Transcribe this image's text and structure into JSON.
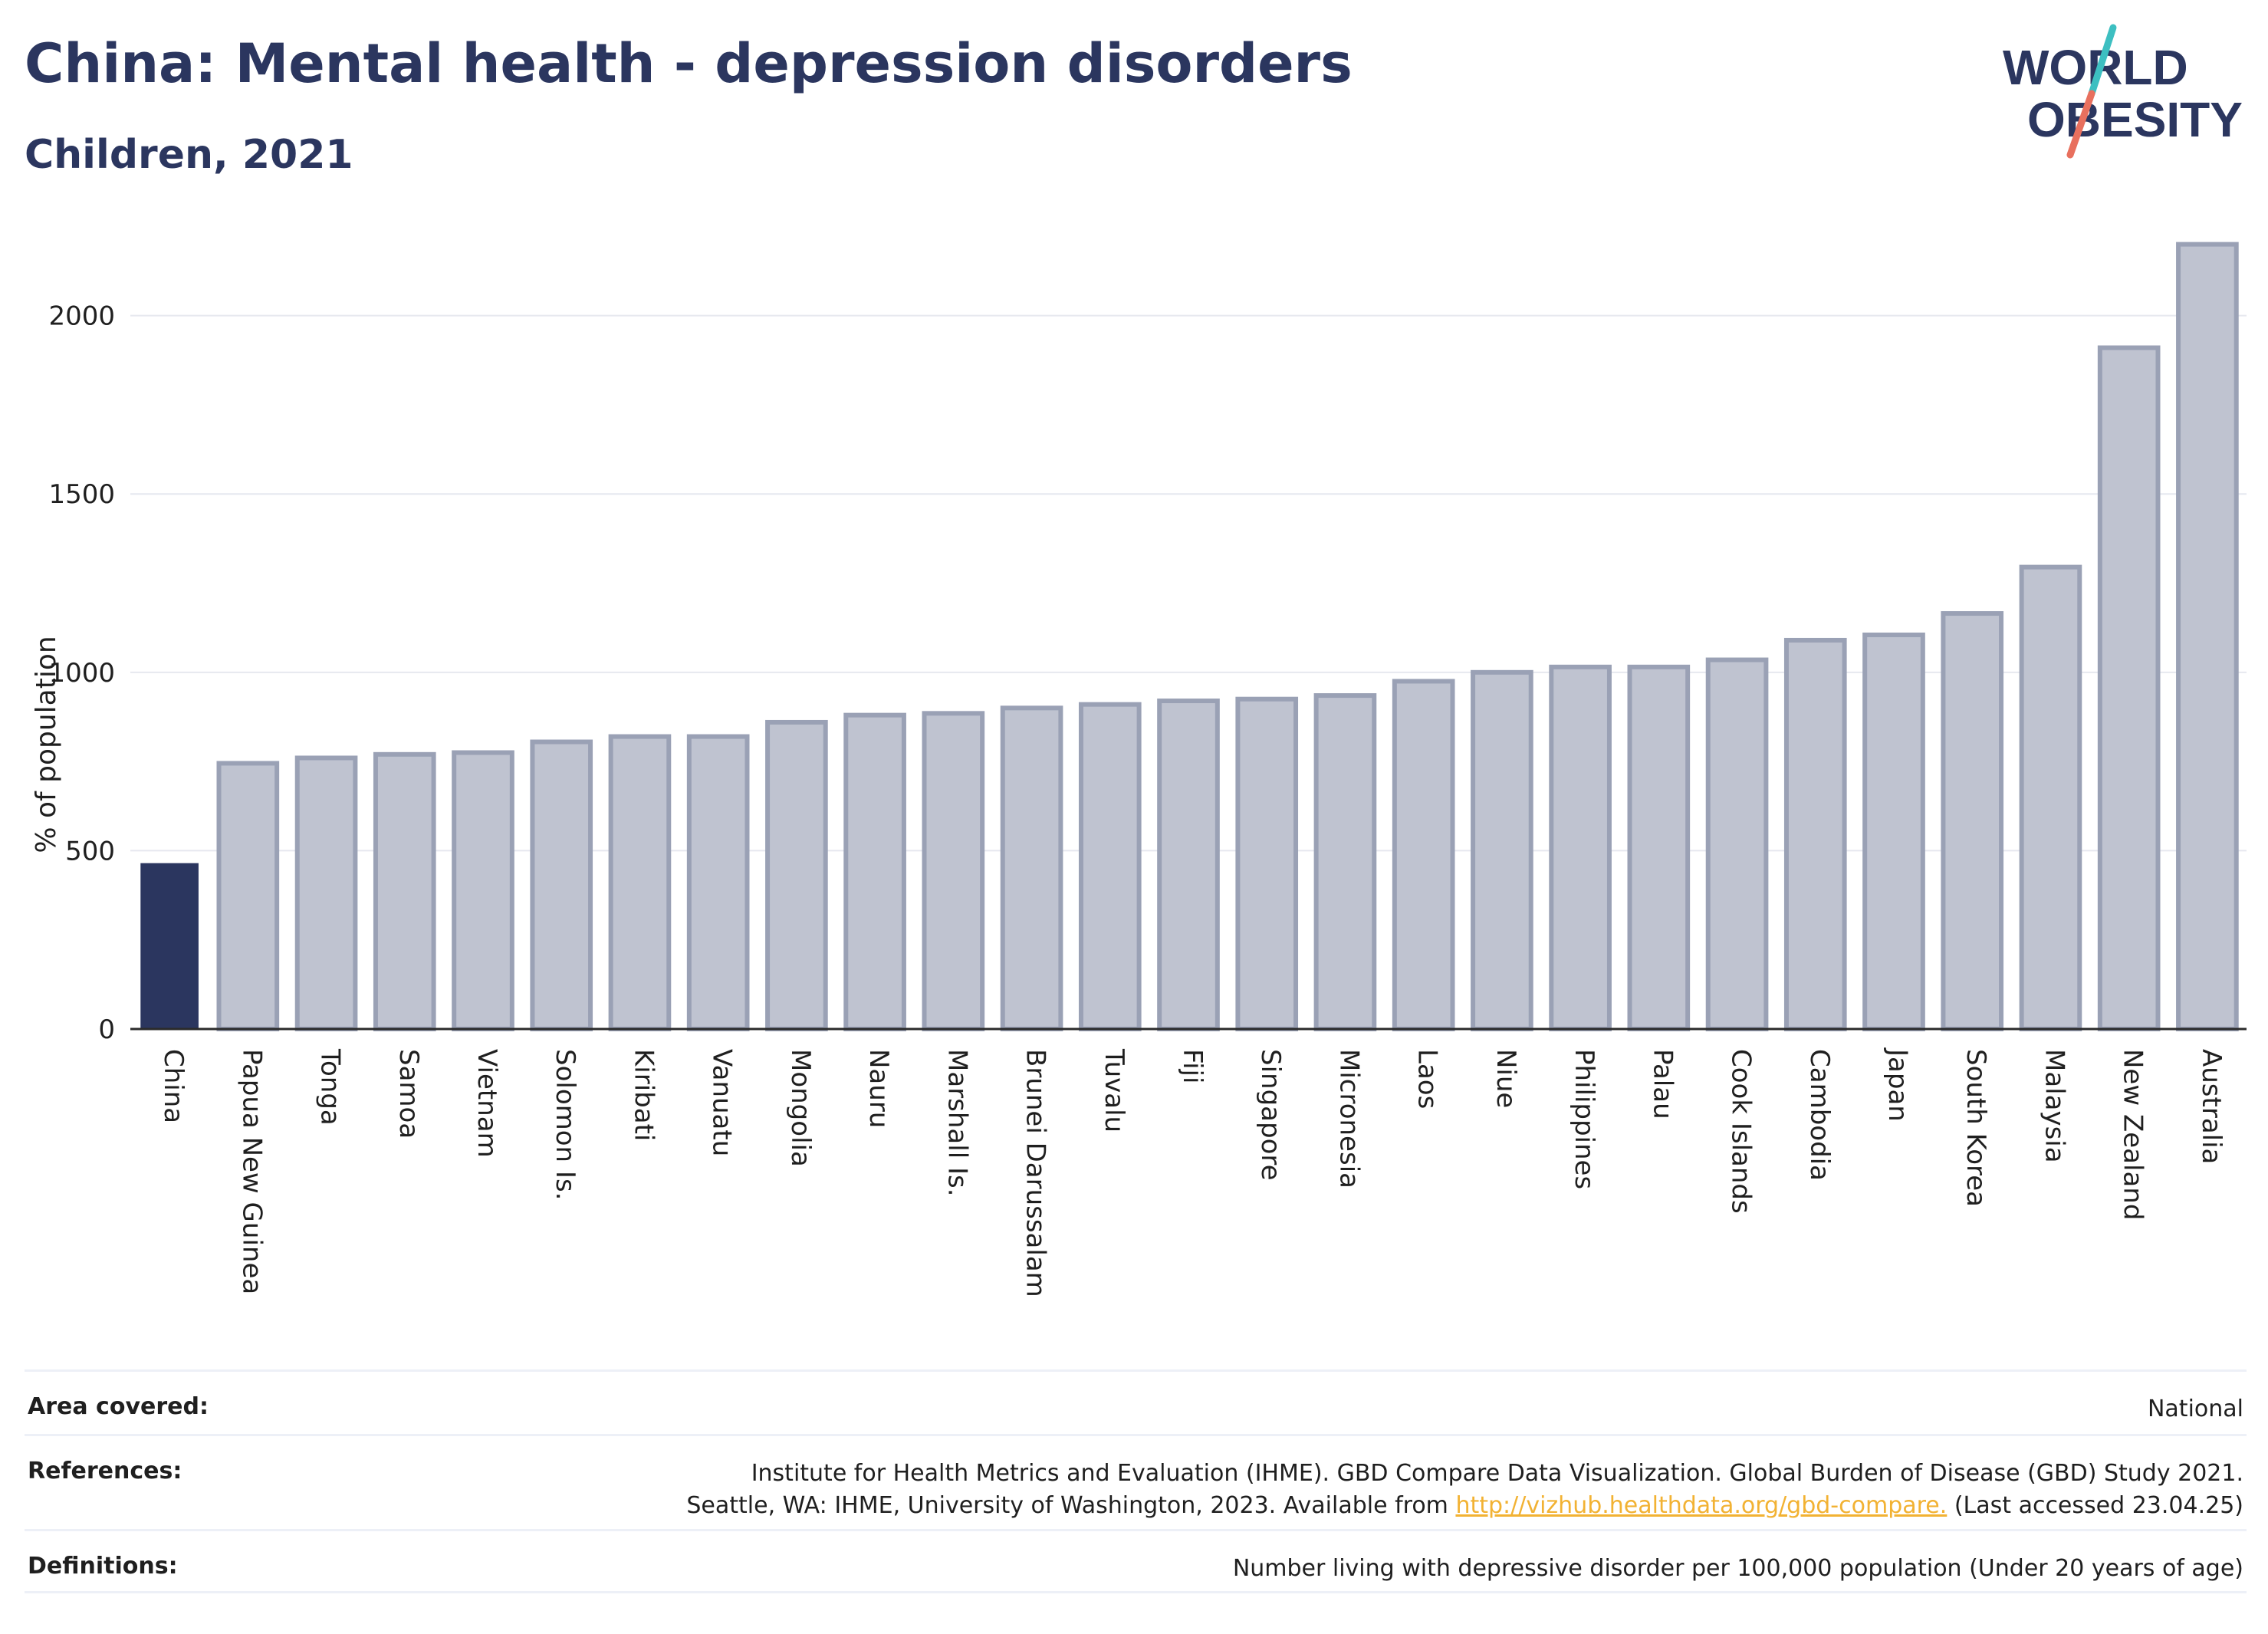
{
  "header": {
    "title": "China: Mental health - depression disorders",
    "subtitle": "Children, 2021"
  },
  "logo": {
    "line1": "WORLD",
    "line2": "OBESITY"
  },
  "colors": {
    "highlight_bar": "#2b365f",
    "other_bar": "#bfc3d0",
    "other_bar_border": "#9aa1b5",
    "title": "#2b365f",
    "link": "#f2b233",
    "logo_teal": "#3dbfc1",
    "logo_coral": "#e8705e"
  },
  "chart_data": {
    "type": "bar",
    "categories": [
      "China",
      "Papua New Guinea",
      "Tonga",
      "Samoa",
      "Vietnam",
      "Solomon Is.",
      "Kiribati",
      "Vanuatu",
      "Mongolia",
      "Nauru",
      "Marshall Is.",
      "Brunei Darussalam",
      "Tuvalu",
      "Fiji",
      "Singapore",
      "Micronesia",
      "Laos",
      "Niue",
      "Philippines",
      "Palau",
      "Cook Islands",
      "Cambodia",
      "Japan",
      "South Korea",
      "Malaysia",
      "New Zealand",
      "Australia"
    ],
    "values": [
      465,
      745,
      760,
      770,
      775,
      805,
      820,
      820,
      860,
      880,
      885,
      900,
      910,
      920,
      925,
      935,
      975,
      1000,
      1015,
      1015,
      1035,
      1090,
      1105,
      1165,
      1295,
      1910,
      2200
    ],
    "highlight": "China",
    "ylabel": "% of population",
    "xlabel": "",
    "ylim": [
      0,
      2240
    ],
    "yticks": [
      0,
      500,
      1000,
      1500,
      2000
    ],
    "grid": true
  },
  "info": {
    "area_label": "Area covered:",
    "area_value": "National",
    "references_label": "References:",
    "references_line1": "Institute for Health Metrics and Evaluation (IHME). GBD Compare Data Visualization. Global Burden of Disease (GBD) Study 2021.",
    "references_line2_pre": "Seattle, WA: IHME, University of Washington, 2023. Available from ",
    "references_link": "http://vizhub.healthdata.org/gbd-compare.",
    "references_line2_post": " (Last accessed 23.04.25)",
    "definitions_label": "Definitions:",
    "definitions_value": "Number living with depressive disorder per 100,000 population (Under 20 years of age)"
  }
}
